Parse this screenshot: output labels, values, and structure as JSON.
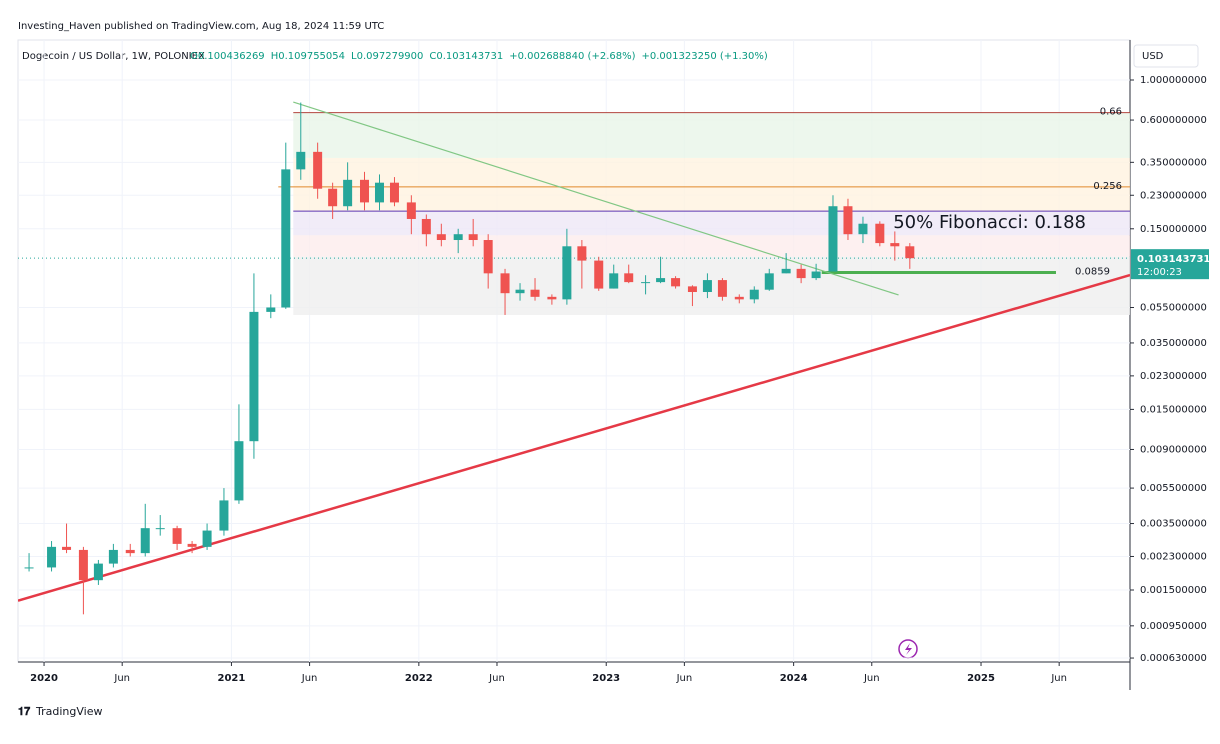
{
  "header": {
    "published": "Investing_Haven published on TradingView.com, Aug 18, 2024 11:59 UTC",
    "brand": "TradingView"
  },
  "chart_data": {
    "type": "candlestick",
    "title": "Dogecoin / US Dollar, 1W, POLONIEX",
    "ohlc_readout": [
      "O0.100436269",
      "H0.109755054",
      "L0.097279900",
      "C0.103143731",
      "+0.002688840 (+2.68%)",
      "+0.001323250 (+1.30%)"
    ],
    "currency": "USD",
    "log_scale": true,
    "up_color": "#26a69a",
    "down_color": "#ef5350",
    "candles": {
      "x": [
        2019.92,
        2020.04,
        2020.12,
        2020.21,
        2020.29,
        2020.37,
        2020.46,
        2020.54,
        2020.62,
        2020.71,
        2020.79,
        2020.87,
        2020.96,
        2021.04,
        2021.12,
        2021.21,
        2021.29,
        2021.37,
        2021.46,
        2021.54,
        2021.62,
        2021.71,
        2021.79,
        2021.87,
        2021.96,
        2022.04,
        2022.12,
        2022.21,
        2022.29,
        2022.37,
        2022.46,
        2022.54,
        2022.62,
        2022.71,
        2022.79,
        2022.87,
        2022.96,
        2023.04,
        2023.12,
        2023.21,
        2023.29,
        2023.37,
        2023.46,
        2023.54,
        2023.62,
        2023.71,
        2023.79,
        2023.87,
        2023.96,
        2024.04,
        2024.12,
        2024.21,
        2024.29,
        2024.37,
        2024.46,
        2024.54,
        2024.62
      ],
      "open": [
        0.002,
        0.002,
        0.0026,
        0.0025,
        0.0017,
        0.0021,
        0.0025,
        0.0024,
        0.0033,
        0.0033,
        0.0027,
        0.0026,
        0.0032,
        0.0047,
        0.01,
        0.052,
        0.055,
        0.32,
        0.4,
        0.25,
        0.2,
        0.28,
        0.21,
        0.27,
        0.21,
        0.17,
        0.14,
        0.13,
        0.14,
        0.13,
        0.085,
        0.066,
        0.069,
        0.063,
        0.061,
        0.12,
        0.1,
        0.07,
        0.085,
        0.076,
        0.076,
        0.08,
        0.072,
        0.067,
        0.078,
        0.063,
        0.061,
        0.069,
        0.085,
        0.09,
        0.08,
        0.087,
        0.2,
        0.14,
        0.16,
        0.125,
        0.12
      ],
      "high": [
        0.0024,
        0.0028,
        0.0035,
        0.0026,
        0.0022,
        0.0027,
        0.0027,
        0.0045,
        0.0039,
        0.0034,
        0.0028,
        0.0035,
        0.0055,
        0.016,
        0.085,
        0.065,
        0.45,
        0.75,
        0.45,
        0.27,
        0.35,
        0.31,
        0.3,
        0.29,
        0.23,
        0.18,
        0.16,
        0.15,
        0.17,
        0.14,
        0.09,
        0.075,
        0.08,
        0.065,
        0.15,
        0.13,
        0.105,
        0.095,
        0.095,
        0.083,
        0.105,
        0.082,
        0.073,
        0.085,
        0.08,
        0.065,
        0.072,
        0.09,
        0.11,
        0.095,
        0.096,
        0.23,
        0.22,
        0.175,
        0.165,
        0.145,
        0.125
      ],
      "low": [
        0.0019,
        0.0019,
        0.0024,
        0.0011,
        0.0016,
        0.002,
        0.0023,
        0.0023,
        0.003,
        0.0025,
        0.0024,
        0.0025,
        0.003,
        0.0045,
        0.008,
        0.048,
        0.054,
        0.28,
        0.22,
        0.17,
        0.19,
        0.19,
        0.19,
        0.2,
        0.14,
        0.12,
        0.12,
        0.11,
        0.12,
        0.07,
        0.05,
        0.06,
        0.06,
        0.057,
        0.057,
        0.07,
        0.068,
        0.07,
        0.075,
        0.065,
        0.075,
        0.07,
        0.056,
        0.062,
        0.06,
        0.058,
        0.058,
        0.068,
        0.085,
        0.075,
        0.078,
        0.087,
        0.13,
        0.125,
        0.12,
        0.1,
        0.09
      ],
      "close": [
        0.002,
        0.0026,
        0.0025,
        0.0017,
        0.0021,
        0.0025,
        0.0024,
        0.0033,
        0.0033,
        0.0027,
        0.0026,
        0.0032,
        0.0047,
        0.01,
        0.052,
        0.055,
        0.32,
        0.4,
        0.25,
        0.2,
        0.28,
        0.21,
        0.27,
        0.21,
        0.17,
        0.14,
        0.13,
        0.14,
        0.13,
        0.085,
        0.066,
        0.069,
        0.063,
        0.061,
        0.12,
        0.1,
        0.07,
        0.085,
        0.076,
        0.076,
        0.08,
        0.072,
        0.067,
        0.078,
        0.063,
        0.061,
        0.069,
        0.085,
        0.09,
        0.08,
        0.087,
        0.2,
        0.14,
        0.16,
        0.125,
        0.12,
        0.1031
      ]
    },
    "last_price": 0.103143731,
    "countdown": "12:00:23",
    "zones": [
      {
        "from": 0.66,
        "to": 0.37,
        "color": "#e8f5e9"
      },
      {
        "from": 0.37,
        "to": 0.188,
        "color": "#fff3e0"
      },
      {
        "from": 0.188,
        "to": 0.138,
        "color": "#ede7f6"
      },
      {
        "from": 0.138,
        "to": 0.105,
        "color": "#fdecec"
      },
      {
        "from": 0.105,
        "to": 0.05,
        "color": "#efefef"
      }
    ],
    "zone_x": [
      2021.33,
      2025.795
    ],
    "levels": [
      {
        "value": 0.66,
        "color": "#b2453f",
        "x": [
          2021.33,
          2025.795
        ]
      },
      {
        "value": 0.256,
        "color": "#e0892b",
        "x": [
          2021.25,
          2025.795
        ]
      },
      {
        "value": 0.188,
        "color": "#5e35b1",
        "x": [
          2021.33,
          2025.795
        ],
        "text": "50% Fibonacci: 0.188"
      },
      {
        "value": 0.0859,
        "color": "#4caf50",
        "x": [
          2024.15,
          2025.4
        ]
      }
    ],
    "trendlines": [
      {
        "x": [
          2021.33,
          2024.56
        ],
        "y": [
          0.755,
          0.0645
        ],
        "color": "#81c784"
      },
      {
        "x": [
          2019.861,
          2025.795
        ],
        "y": [
          0.00131,
          0.0832
        ],
        "color": "#e53946"
      }
    ],
    "xlim": [
      2019.861,
      2025.795
    ],
    "ylim": [
      0.000599,
      1.665
    ],
    "xticks": [
      2020,
      {
        "value": 2020.417,
        "label": "Jun"
      },
      2021,
      {
        "value": 2021.417,
        "label": "Jun"
      },
      2022,
      {
        "value": 2022.417,
        "label": "Jun"
      },
      2023,
      {
        "value": 2023.417,
        "label": "Jun"
      },
      2024,
      {
        "value": 2024.417,
        "label": "Jun"
      },
      2025,
      {
        "value": 2025.417,
        "label": "Jun"
      }
    ],
    "yticks": [
      {
        "value": 1,
        "label": "1.000000000"
      },
      {
        "value": 0.6,
        "label": "0.600000000"
      },
      {
        "value": 0.35,
        "label": "0.350000000"
      },
      {
        "value": 0.23,
        "label": "0.230000000"
      },
      {
        "value": 0.15,
        "label": "0.150000000"
      },
      {
        "value": 0.055,
        "label": "0.055000000"
      },
      {
        "value": 0.035,
        "label": "0.035000000"
      },
      {
        "value": 0.023,
        "label": "0.023000000"
      },
      {
        "value": 0.015,
        "label": "0.015000000"
      },
      {
        "value": 0.009,
        "label": "0.009000000"
      },
      {
        "value": 0.0055,
        "label": "0.005500000"
      },
      {
        "value": 0.0035,
        "label": "0.003500000"
      },
      {
        "value": 0.0023,
        "label": "0.002300000"
      },
      {
        "value": 0.0015,
        "label": "0.001500000"
      },
      {
        "value": 0.00095,
        "label": "0.000950000"
      },
      {
        "value": 0.00063,
        "label": "0.000630000"
      }
    ],
    "grid": true
  }
}
